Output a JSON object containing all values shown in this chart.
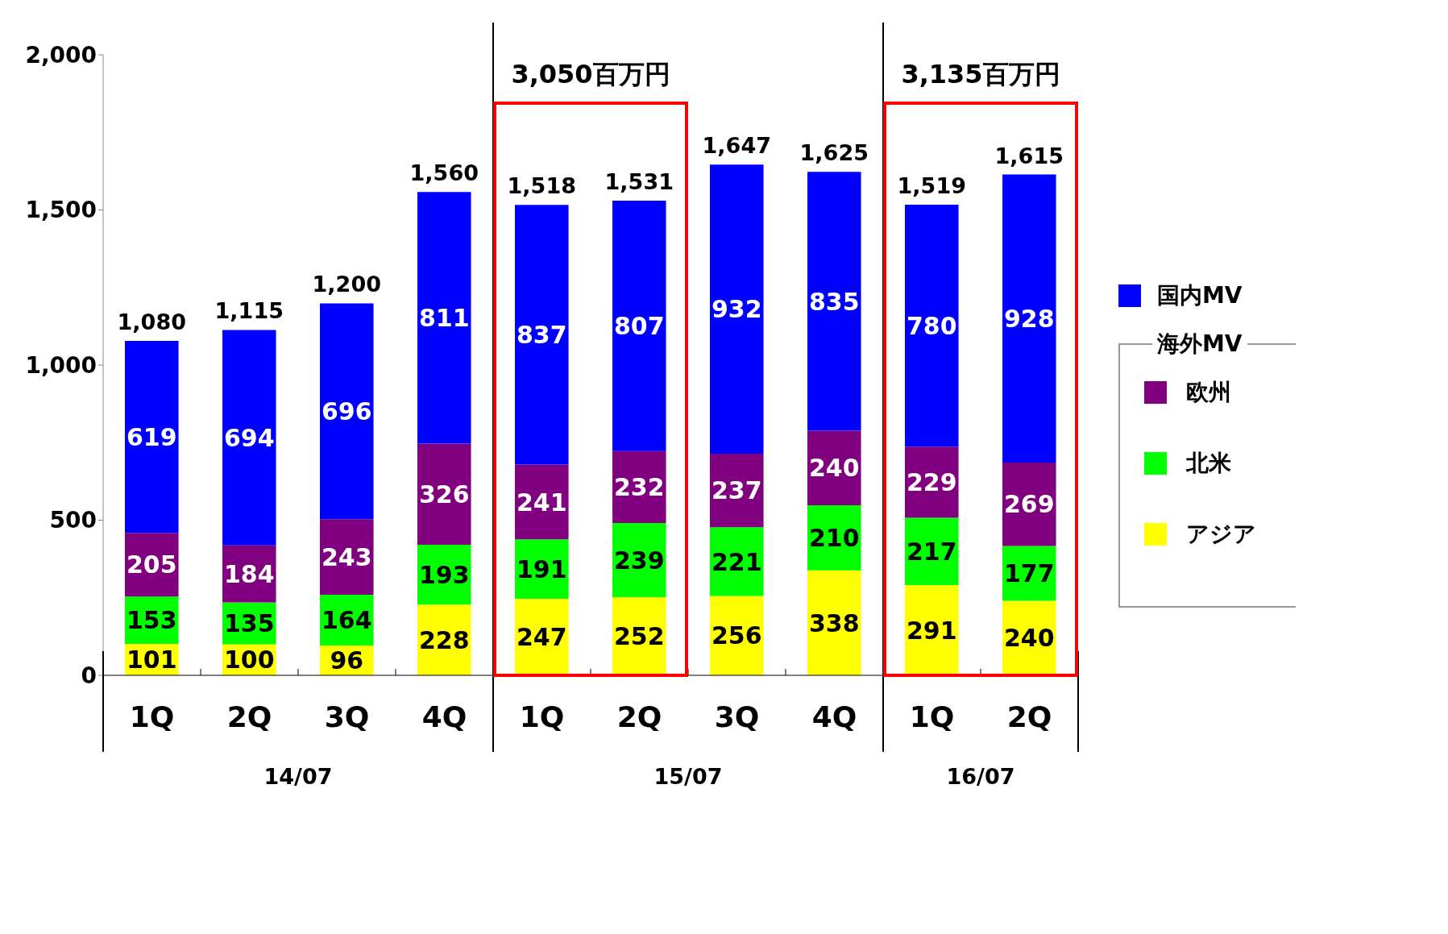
{
  "chart_data": {
    "type": "bar",
    "stacked": true,
    "data_labels": true,
    "legend": "right",
    "legend_title": "海外MV",
    "categories": [
      "1Q",
      "2Q",
      "3Q",
      "4Q",
      "1Q",
      "2Q",
      "3Q",
      "4Q",
      "1Q",
      "2Q"
    ],
    "series": [
      {
        "name": "アジア",
        "color": "#ffff00",
        "values": [
          101,
          100,
          96,
          228,
          247,
          252,
          256,
          338,
          291,
          240
        ]
      },
      {
        "name": "北米",
        "color": "#00ff00",
        "values": [
          153,
          135,
          164,
          193,
          191,
          239,
          221,
          210,
          217,
          177
        ]
      },
      {
        "name": "欧州",
        "color": "#800080",
        "values": [
          205,
          184,
          243,
          326,
          241,
          232,
          237,
          240,
          229,
          269
        ]
      },
      {
        "name": "国内MV",
        "color": "#0000ff",
        "values": [
          619,
          694,
          696,
          811,
          837,
          807,
          932,
          835,
          780,
          928
        ]
      }
    ],
    "totals": [
      "1,080",
      "1,115",
      "1,200",
      "1,560",
      "1,518",
      "1,531",
      "1,647",
      "1,625",
      "1,519",
      "1,615"
    ],
    "ylim": [
      0,
      2000
    ],
    "yticks": [
      {
        "value": 0,
        "label": "0"
      },
      {
        "value": 500,
        "label": "500"
      },
      {
        "value": 1000,
        "label": "1,000"
      },
      {
        "value": 1500,
        "label": "1,500"
      },
      {
        "value": 2000,
        "label": "2,000"
      }
    ],
    "annotations": [
      "3,050百万円",
      "3,135百万円",
      "14/07",
      "15/07",
      "16/07"
    ]
  }
}
